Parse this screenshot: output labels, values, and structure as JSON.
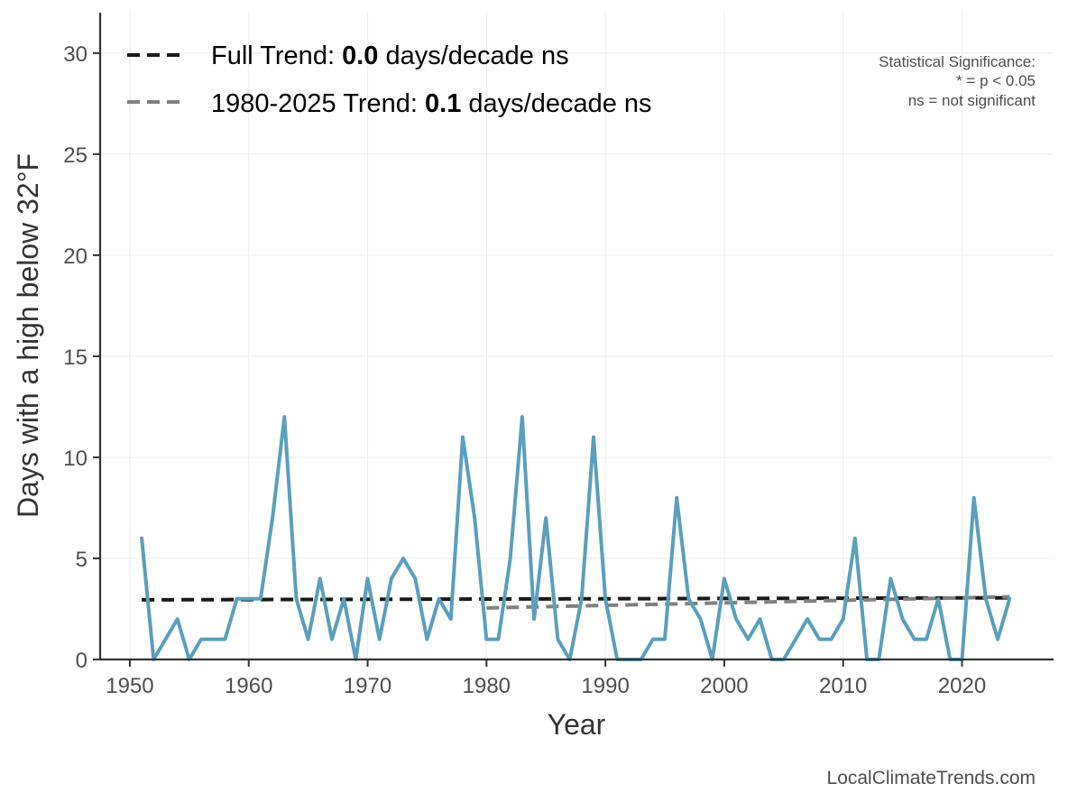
{
  "chart_data": {
    "type": "line",
    "title": "",
    "xlabel": "Year",
    "ylabel": "Days with a high below 32°F",
    "xlim": [
      1947.5,
      2027.7
    ],
    "ylim": [
      0,
      32
    ],
    "x_ticks": [
      1950,
      1960,
      1970,
      1980,
      1990,
      2000,
      2010,
      2020
    ],
    "y_ticks": [
      0,
      5,
      10,
      15,
      20,
      25,
      30
    ],
    "grid": true,
    "legend_position": "top-left",
    "series": [
      {
        "x": [
          1951,
          1952,
          1953,
          1954,
          1955,
          1956,
          1957,
          1958,
          1959,
          1960,
          1961,
          1962,
          1963,
          1964,
          1965,
          1966,
          1967,
          1968,
          1969,
          1970,
          1971,
          1972,
          1973,
          1974,
          1975,
          1976,
          1977,
          1978,
          1979,
          1980,
          1981,
          1982,
          1983,
          1984,
          1985,
          1986,
          1987,
          1988,
          1989,
          1990,
          1991,
          1992,
          1993,
          1994,
          1995,
          1996,
          1997,
          1998,
          1999,
          2000,
          2001,
          2002,
          2003,
          2004,
          2005,
          2006,
          2007,
          2008,
          2009,
          2010,
          2011,
          2012,
          2013,
          2014,
          2015,
          2016,
          2017,
          2018,
          2019,
          2020,
          2021,
          2022,
          2023,
          2024
        ],
        "y": [
          6,
          0,
          1,
          2,
          0,
          1,
          1,
          1,
          3,
          3,
          3,
          7,
          12,
          3,
          1,
          4,
          1,
          3,
          0,
          4,
          1,
          4,
          5,
          4,
          1,
          3,
          2,
          11,
          7,
          1,
          1,
          5,
          12,
          2,
          7,
          1,
          0,
          3,
          11,
          3,
          0,
          0,
          0,
          1,
          1,
          8,
          3,
          2,
          0,
          4,
          2,
          1,
          2,
          0,
          0,
          1,
          2,
          1,
          1,
          2,
          6,
          0,
          0,
          4,
          2,
          1,
          1,
          3,
          0,
          0,
          8,
          3,
          1,
          3
        ],
        "color": "#5a9fbc"
      }
    ],
    "trend_lines": [
      {
        "label_prefix": "Full Trend: ",
        "value": "0.0",
        "label_suffix": " days/decade ns",
        "x": [
          1951,
          2024
        ],
        "y": [
          2.95,
          3.05
        ],
        "color": "#1a1a1a"
      },
      {
        "label_prefix": "1980-2025 Trend: ",
        "value": "0.1",
        "label_suffix": " days/decade ns",
        "x": [
          1980,
          2024
        ],
        "y": [
          2.55,
          3.1
        ],
        "color": "#808080"
      }
    ],
    "annotation": {
      "line1": "Statistical Significance:",
      "line2": "* = p < 0.05",
      "line3": "ns = not significant"
    },
    "credit": "LocalClimateTrends.com"
  }
}
